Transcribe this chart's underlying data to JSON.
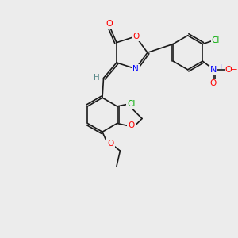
{
  "bg_color": "#ececec",
  "bond_color": "#1a1a1a",
  "atom_colors": {
    "O": "#ff0000",
    "N": "#0000ff",
    "Cl": "#00aa00",
    "H": "#5a8a8a",
    "C": "#1a1a1a"
  },
  "font_size": 7.5,
  "bond_width": 1.2
}
